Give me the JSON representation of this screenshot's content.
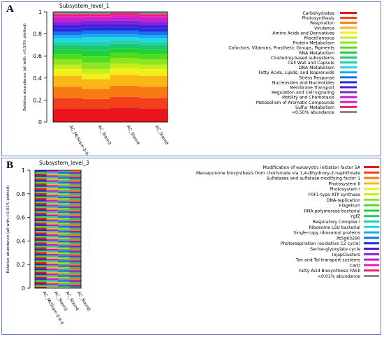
{
  "panels": [
    {
      "label": "A",
      "chart_data": {
        "type": "bar",
        "stacked": true,
        "title": "Subsystem_level_1",
        "ylabel": "Relative abundance (all with >0.50% plotted)",
        "xlabel": "",
        "ylim": [
          0,
          1
        ],
        "yticks": [
          "0",
          "0.2",
          "0.4",
          "0.6",
          "0.8",
          "1"
        ],
        "categories": [
          "AC_McStarn-3-9-4",
          "AC_Starn3",
          "AC_Starn4",
          "AC_Starn8"
        ],
        "legend_position": "right",
        "series": [
          {
            "name": "Carbohydrates",
            "color": "#e8141e",
            "values": [
              0.12,
              0.12,
              0.13,
              0.12
            ]
          },
          {
            "name": "Photosynthesis",
            "color": "#f2401a",
            "values": [
              0.1,
              0.09,
              0.1,
              0.1
            ]
          },
          {
            "name": "Respiration",
            "color": "#f77a14",
            "values": [
              0.1,
              0.09,
              0.1,
              0.1
            ]
          },
          {
            "name": "Virulence",
            "color": "#fbb814",
            "values": [
              0.1,
              0.09,
              0.1,
              0.1
            ]
          },
          {
            "name": "Amino Acids and Derivatives",
            "color": "#f2f01a",
            "values": [
              0.06,
              0.05,
              0.06,
              0.06
            ]
          },
          {
            "name": "Miscellaneous",
            "color": "#c4ee1c",
            "values": [
              0.04,
              0.04,
              0.04,
              0.04
            ]
          },
          {
            "name": "Protein Metabolism",
            "color": "#8fe61f",
            "values": [
              0.05,
              0.06,
              0.05,
              0.05
            ]
          },
          {
            "name": "Cofactors, Vitamins, Prosthetic Groups, Pigments",
            "color": "#4fdd22",
            "values": [
              0.05,
              0.06,
              0.05,
              0.05
            ]
          },
          {
            "name": "RNA Metabolism",
            "color": "#1ed236",
            "values": [
              0.04,
              0.05,
              0.04,
              0.04
            ]
          },
          {
            "name": "Clustering-based subsystems",
            "color": "#1ec86e",
            "values": [
              0.04,
              0.04,
              0.04,
              0.04
            ]
          },
          {
            "name": "Cell Wall and Capsule",
            "color": "#20d0b0",
            "values": [
              0.03,
              0.04,
              0.03,
              0.03
            ]
          },
          {
            "name": "DNA Metabolism",
            "color": "#1ed8e6",
            "values": [
              0.03,
              0.04,
              0.03,
              0.03
            ]
          },
          {
            "name": "Fatty Acids, Lipids, and Isoprenoids",
            "color": "#1aaaf0",
            "values": [
              0.03,
              0.03,
              0.03,
              0.03
            ]
          },
          {
            "name": "Stress Response",
            "color": "#1c6ef0",
            "values": [
              0.03,
              0.03,
              0.03,
              0.03
            ]
          },
          {
            "name": "Nucleosides and Nucleotides",
            "color": "#1e2ee0",
            "values": [
              0.03,
              0.03,
              0.03,
              0.03
            ]
          },
          {
            "name": "Membrane Transport",
            "color": "#4a1ed4",
            "values": [
              0.03,
              0.03,
              0.03,
              0.03
            ]
          },
          {
            "name": "Regulation and Cell signaling",
            "color": "#8420d6",
            "values": [
              0.03,
              0.03,
              0.03,
              0.03
            ]
          },
          {
            "name": "Motility and Chemotaxis",
            "color": "#c01ed8",
            "values": [
              0.03,
              0.02,
              0.03,
              0.03
            ]
          },
          {
            "name": "Metabolism of Aromatic Compounds",
            "color": "#e61eb4",
            "values": [
              0.02,
              0.02,
              0.02,
              0.02
            ]
          },
          {
            "name": "Sulfur Metabolism",
            "color": "#f01e72",
            "values": [
              0.02,
              0.02,
              0.02,
              0.02
            ]
          },
          {
            "name": "<0.50% abundance",
            "color": "#8c8c8c",
            "values": [
              0.02,
              0.02,
              0.01,
              0.02
            ]
          }
        ]
      }
    },
    {
      "label": "B",
      "chart_data": {
        "type": "bar",
        "stacked": true,
        "title": "Subsystem_level_3",
        "ylabel": "Relative abundance (all with >0.01% plotted)",
        "xlabel": "",
        "ylim": [
          0,
          1
        ],
        "yticks": [
          "0",
          "0.2",
          "0.4",
          "0.6",
          "0.8",
          "1"
        ],
        "categories": [
          "AC_McStarn-3-9-4",
          "AC_Starn3",
          "AC_Starn4",
          "AC_Starn8"
        ],
        "legend_position": "right",
        "bar_layers": 72,
        "series": [
          {
            "name": "Modification of eukaryotic initiation factor 5A",
            "color": "#e8141e"
          },
          {
            "name": "Menaquinone biosynthesis from chorismate via 1,4-dihydroxy-2-naphthoate",
            "color": "#f2401a"
          },
          {
            "name": "Sulfatases and sulfatase modifying factor 1",
            "color": "#f77a14"
          },
          {
            "name": "Photosystem II",
            "color": "#fbb814"
          },
          {
            "name": "Photosystem I",
            "color": "#f2f01a"
          },
          {
            "name": "F0F1-type ATP synthase",
            "color": "#c4ee1c"
          },
          {
            "name": "DNA-replication",
            "color": "#8fe61f"
          },
          {
            "name": "Flagellum",
            "color": "#4fdd22"
          },
          {
            "name": "RNA polymerase bacterial",
            "color": "#1ed236"
          },
          {
            "name": "YgfZ",
            "color": "#1ec86e"
          },
          {
            "name": "Respiratory Complex I",
            "color": "#20d0b0"
          },
          {
            "name": "Ribosome LSU bacterial",
            "color": "#1ed8e6"
          },
          {
            "name": "Single-copy ribosomal proteins",
            "color": "#1aaaf0"
          },
          {
            "name": "At5g63290",
            "color": "#1c6ef0"
          },
          {
            "name": "Photorespiration (oxidative C2 cycle)",
            "color": "#1e2ee0"
          },
          {
            "name": "Serine-glyoxylate cycle",
            "color": "#4a1ed4"
          },
          {
            "name": "IojapClusters",
            "color": "#8420d6"
          },
          {
            "name": "Ton and Tol transport systems",
            "color": "#c01ed8"
          },
          {
            "name": "CarD",
            "color": "#e61eb4"
          },
          {
            "name": "Fatty Acid Biosynthesis FASII",
            "color": "#f01e72"
          },
          {
            "name": "<0.01% abundance",
            "color": "#8c8c8c"
          }
        ]
      }
    }
  ]
}
